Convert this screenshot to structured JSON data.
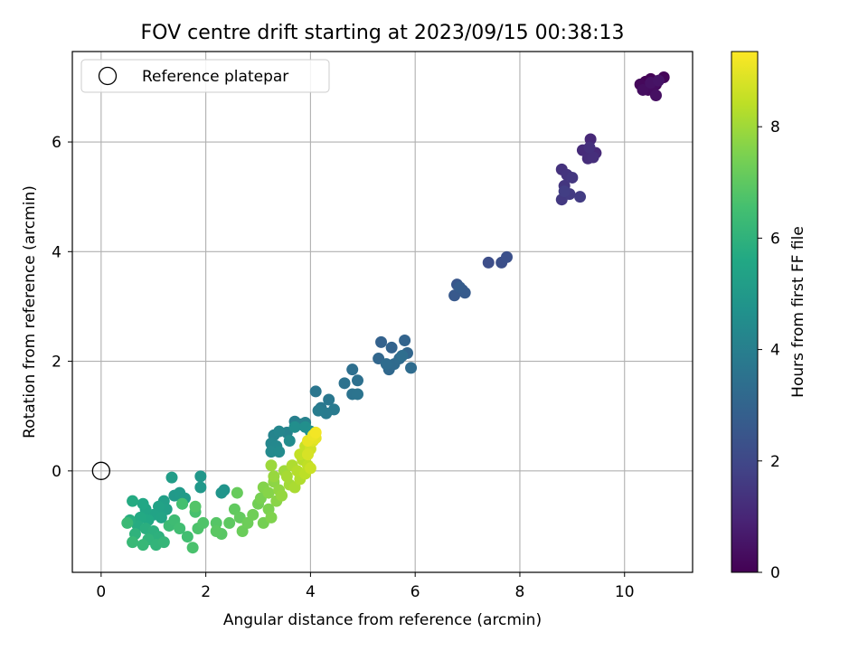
{
  "chart_data": {
    "type": "scatter",
    "title": "FOV centre drift starting at 2023/09/15 00:38:13",
    "xlabel": "Angular distance from reference (arcmin)",
    "ylabel": "Rotation from reference (arcmin)",
    "colorbar_label": "Hours from first FF file",
    "colormap": "viridis",
    "xlim": [
      -0.55,
      11.3
    ],
    "ylim": [
      -1.85,
      7.65
    ],
    "clim": [
      0,
      9.35
    ],
    "xticks": [
      "0",
      "2",
      "4",
      "6",
      "8",
      "10"
    ],
    "yticks": [
      "0",
      "2",
      "4",
      "6"
    ],
    "cticks": [
      "0",
      "2",
      "4",
      "6",
      "8"
    ],
    "grid": true,
    "legend": {
      "placement": "upper-left",
      "entries": [
        {
          "label": "Reference platepar",
          "marker": "open-circle"
        }
      ]
    },
    "reference_point": {
      "x": 0,
      "y": 0
    },
    "points": [
      {
        "x": 10.4,
        "y": 7.1,
        "c": 0.05
      },
      {
        "x": 10.5,
        "y": 7.15,
        "c": 0.08
      },
      {
        "x": 10.6,
        "y": 7.05,
        "c": 0.12
      },
      {
        "x": 10.75,
        "y": 7.18,
        "c": 0.15
      },
      {
        "x": 10.3,
        "y": 7.05,
        "c": 0.2
      },
      {
        "x": 10.45,
        "y": 6.95,
        "c": 0.25
      },
      {
        "x": 10.55,
        "y": 7.0,
        "c": 0.3
      },
      {
        "x": 10.35,
        "y": 6.95,
        "c": 0.35
      },
      {
        "x": 10.6,
        "y": 6.85,
        "c": 0.4
      },
      {
        "x": 10.5,
        "y": 7.08,
        "c": 0.45
      },
      {
        "x": 10.65,
        "y": 7.12,
        "c": 0.5
      },
      {
        "x": 9.3,
        "y": 5.85,
        "c": 1.0
      },
      {
        "x": 9.35,
        "y": 6.05,
        "c": 1.05
      },
      {
        "x": 9.45,
        "y": 5.8,
        "c": 1.1
      },
      {
        "x": 9.2,
        "y": 5.85,
        "c": 1.15
      },
      {
        "x": 9.3,
        "y": 5.7,
        "c": 1.2
      },
      {
        "x": 9.4,
        "y": 5.72,
        "c": 1.25
      },
      {
        "x": 9.33,
        "y": 5.9,
        "c": 1.3
      },
      {
        "x": 8.8,
        "y": 5.5,
        "c": 1.35
      },
      {
        "x": 8.9,
        "y": 5.4,
        "c": 1.4
      },
      {
        "x": 8.85,
        "y": 5.2,
        "c": 1.45
      },
      {
        "x": 9.0,
        "y": 5.35,
        "c": 1.5
      },
      {
        "x": 8.8,
        "y": 4.95,
        "c": 1.55
      },
      {
        "x": 8.95,
        "y": 5.05,
        "c": 1.6
      },
      {
        "x": 9.15,
        "y": 5.0,
        "c": 1.65
      },
      {
        "x": 8.85,
        "y": 5.1,
        "c": 1.7
      },
      {
        "x": 7.4,
        "y": 3.8,
        "c": 2.2
      },
      {
        "x": 7.65,
        "y": 3.8,
        "c": 2.25
      },
      {
        "x": 7.75,
        "y": 3.9,
        "c": 2.3
      },
      {
        "x": 6.8,
        "y": 3.4,
        "c": 2.5
      },
      {
        "x": 6.9,
        "y": 3.3,
        "c": 2.55
      },
      {
        "x": 6.75,
        "y": 3.2,
        "c": 2.6
      },
      {
        "x": 6.95,
        "y": 3.25,
        "c": 2.65
      },
      {
        "x": 6.85,
        "y": 3.35,
        "c": 2.7
      },
      {
        "x": 5.35,
        "y": 2.35,
        "c": 2.9
      },
      {
        "x": 5.55,
        "y": 2.25,
        "c": 2.95
      },
      {
        "x": 5.8,
        "y": 2.38,
        "c": 3.0
      },
      {
        "x": 5.85,
        "y": 2.15,
        "c": 3.05
      },
      {
        "x": 5.3,
        "y": 2.05,
        "c": 3.1
      },
      {
        "x": 5.5,
        "y": 1.85,
        "c": 3.15
      },
      {
        "x": 5.6,
        "y": 1.95,
        "c": 3.2
      },
      {
        "x": 5.7,
        "y": 2.05,
        "c": 3.25
      },
      {
        "x": 5.92,
        "y": 1.88,
        "c": 3.3
      },
      {
        "x": 5.45,
        "y": 1.95,
        "c": 3.3
      },
      {
        "x": 5.75,
        "y": 2.1,
        "c": 3.35
      },
      {
        "x": 4.8,
        "y": 1.85,
        "c": 3.4
      },
      {
        "x": 4.9,
        "y": 1.65,
        "c": 3.45
      },
      {
        "x": 4.65,
        "y": 1.6,
        "c": 3.5
      },
      {
        "x": 4.8,
        "y": 1.4,
        "c": 3.55
      },
      {
        "x": 4.9,
        "y": 1.4,
        "c": 3.6
      },
      {
        "x": 4.1,
        "y": 1.45,
        "c": 3.65
      },
      {
        "x": 4.35,
        "y": 1.3,
        "c": 3.7
      },
      {
        "x": 4.2,
        "y": 1.15,
        "c": 3.75
      },
      {
        "x": 4.45,
        "y": 1.12,
        "c": 3.8
      },
      {
        "x": 4.3,
        "y": 1.05,
        "c": 3.85
      },
      {
        "x": 4.15,
        "y": 1.1,
        "c": 3.9
      },
      {
        "x": 3.7,
        "y": 0.9,
        "c": 4.0
      },
      {
        "x": 3.8,
        "y": 0.85,
        "c": 4.05
      },
      {
        "x": 3.9,
        "y": 0.88,
        "c": 4.1
      },
      {
        "x": 3.55,
        "y": 0.7,
        "c": 4.15
      },
      {
        "x": 3.3,
        "y": 0.65,
        "c": 4.2
      },
      {
        "x": 3.4,
        "y": 0.72,
        "c": 4.25
      },
      {
        "x": 3.25,
        "y": 0.5,
        "c": 4.3
      },
      {
        "x": 3.35,
        "y": 0.45,
        "c": 4.35
      },
      {
        "x": 3.25,
        "y": 0.35,
        "c": 4.4
      },
      {
        "x": 3.4,
        "y": 0.35,
        "c": 4.45
      },
      {
        "x": 3.6,
        "y": 0.55,
        "c": 4.5
      },
      {
        "x": 3.7,
        "y": 0.8,
        "c": 4.55
      },
      {
        "x": 3.9,
        "y": 0.8,
        "c": 4.6
      },
      {
        "x": 4.0,
        "y": 0.72,
        "c": 4.65
      },
      {
        "x": 2.35,
        "y": -0.35,
        "c": 4.8
      },
      {
        "x": 2.3,
        "y": -0.4,
        "c": 4.85
      },
      {
        "x": 1.9,
        "y": -0.1,
        "c": 4.9
      },
      {
        "x": 1.9,
        "y": -0.3,
        "c": 4.95
      },
      {
        "x": 1.4,
        "y": -0.45,
        "c": 5.0
      },
      {
        "x": 1.5,
        "y": -0.4,
        "c": 5.05
      },
      {
        "x": 1.6,
        "y": -0.5,
        "c": 5.1
      },
      {
        "x": 1.35,
        "y": -0.12,
        "c": 5.15
      },
      {
        "x": 1.55,
        "y": -0.6,
        "c": 5.2
      },
      {
        "x": 1.2,
        "y": -0.55,
        "c": 5.25
      },
      {
        "x": 1.25,
        "y": -0.7,
        "c": 5.3
      },
      {
        "x": 1.1,
        "y": -0.65,
        "c": 5.35
      },
      {
        "x": 1.0,
        "y": -0.8,
        "c": 5.4
      },
      {
        "x": 1.15,
        "y": -0.85,
        "c": 5.45
      },
      {
        "x": 0.85,
        "y": -0.7,
        "c": 5.5
      },
      {
        "x": 0.8,
        "y": -0.6,
        "c": 5.55
      },
      {
        "x": 0.9,
        "y": -0.9,
        "c": 5.6
      },
      {
        "x": 0.75,
        "y": -0.85,
        "c": 5.65
      },
      {
        "x": 0.6,
        "y": -0.55,
        "c": 5.7
      },
      {
        "x": 0.7,
        "y": -1.0,
        "c": 5.75
      },
      {
        "x": 0.55,
        "y": -0.9,
        "c": 5.8
      },
      {
        "x": 0.85,
        "y": -1.05,
        "c": 5.85
      },
      {
        "x": 1.0,
        "y": -1.1,
        "c": 5.9
      },
      {
        "x": 1.1,
        "y": -1.2,
        "c": 5.95
      },
      {
        "x": 0.65,
        "y": -1.15,
        "c": 6.0
      },
      {
        "x": 0.9,
        "y": -1.25,
        "c": 6.05
      },
      {
        "x": 1.05,
        "y": -1.35,
        "c": 6.1
      },
      {
        "x": 1.2,
        "y": -1.3,
        "c": 6.15
      },
      {
        "x": 0.8,
        "y": -1.35,
        "c": 6.2
      },
      {
        "x": 0.6,
        "y": -1.3,
        "c": 6.25
      },
      {
        "x": 0.5,
        "y": -0.95,
        "c": 6.3
      },
      {
        "x": 1.3,
        "y": -1.0,
        "c": 6.35
      },
      {
        "x": 1.4,
        "y": -0.9,
        "c": 6.4
      },
      {
        "x": 1.5,
        "y": -1.05,
        "c": 6.45
      },
      {
        "x": 1.65,
        "y": -1.2,
        "c": 6.5
      },
      {
        "x": 1.55,
        "y": -0.6,
        "c": 6.55
      },
      {
        "x": 1.8,
        "y": -0.75,
        "c": 6.6
      },
      {
        "x": 1.75,
        "y": -1.4,
        "c": 6.65
      },
      {
        "x": 1.85,
        "y": -1.05,
        "c": 6.7
      },
      {
        "x": 1.95,
        "y": -0.95,
        "c": 6.75
      },
      {
        "x": 1.8,
        "y": -0.65,
        "c": 6.8
      },
      {
        "x": 2.2,
        "y": -0.95,
        "c": 6.85
      },
      {
        "x": 2.3,
        "y": -1.15,
        "c": 6.9
      },
      {
        "x": 2.2,
        "y": -1.1,
        "c": 6.95
      },
      {
        "x": 2.45,
        "y": -0.95,
        "c": 7.0
      },
      {
        "x": 2.55,
        "y": -0.7,
        "c": 7.05
      },
      {
        "x": 2.65,
        "y": -0.85,
        "c": 7.1
      },
      {
        "x": 2.6,
        "y": -0.4,
        "c": 7.15
      },
      {
        "x": 2.7,
        "y": -1.1,
        "c": 7.2
      },
      {
        "x": 2.8,
        "y": -0.95,
        "c": 7.25
      },
      {
        "x": 2.9,
        "y": -0.8,
        "c": 7.3
      },
      {
        "x": 3.0,
        "y": -0.6,
        "c": 7.35
      },
      {
        "x": 3.1,
        "y": -0.95,
        "c": 7.4
      },
      {
        "x": 3.05,
        "y": -0.5,
        "c": 7.45
      },
      {
        "x": 3.2,
        "y": -0.7,
        "c": 7.5
      },
      {
        "x": 3.25,
        "y": -0.85,
        "c": 7.55
      },
      {
        "x": 3.1,
        "y": -0.3,
        "c": 7.6
      },
      {
        "x": 3.2,
        "y": -0.4,
        "c": 7.65
      },
      {
        "x": 3.35,
        "y": -0.55,
        "c": 7.7
      },
      {
        "x": 3.3,
        "y": -0.2,
        "c": 7.75
      },
      {
        "x": 3.4,
        "y": -0.35,
        "c": 7.8
      },
      {
        "x": 3.45,
        "y": -0.45,
        "c": 7.85
      },
      {
        "x": 3.3,
        "y": -0.1,
        "c": 7.9
      },
      {
        "x": 3.25,
        "y": 0.1,
        "c": 7.95
      },
      {
        "x": 3.5,
        "y": 0.0,
        "c": 8.0
      },
      {
        "x": 3.6,
        "y": -0.25,
        "c": 8.05
      },
      {
        "x": 3.55,
        "y": -0.1,
        "c": 8.1
      },
      {
        "x": 3.7,
        "y": -0.3,
        "c": 8.15
      },
      {
        "x": 3.65,
        "y": 0.1,
        "c": 8.2
      },
      {
        "x": 3.8,
        "y": -0.15,
        "c": 8.25
      },
      {
        "x": 3.75,
        "y": 0.0,
        "c": 8.3
      },
      {
        "x": 3.85,
        "y": 0.2,
        "c": 8.35
      },
      {
        "x": 3.9,
        "y": -0.05,
        "c": 8.4
      },
      {
        "x": 3.95,
        "y": 0.1,
        "c": 8.45
      },
      {
        "x": 3.8,
        "y": 0.3,
        "c": 8.5
      },
      {
        "x": 3.9,
        "y": 0.45,
        "c": 8.55
      },
      {
        "x": 4.0,
        "y": 0.05,
        "c": 8.6
      },
      {
        "x": 4.0,
        "y": 0.4,
        "c": 8.7
      },
      {
        "x": 3.95,
        "y": 0.3,
        "c": 8.8
      },
      {
        "x": 4.05,
        "y": 0.55,
        "c": 8.9
      },
      {
        "x": 4.1,
        "y": 0.6,
        "c": 9.0
      },
      {
        "x": 3.95,
        "y": 0.55,
        "c": 9.05
      },
      {
        "x": 4.05,
        "y": 0.65,
        "c": 9.1
      },
      {
        "x": 4.1,
        "y": 0.7,
        "c": 9.2
      }
    ]
  }
}
